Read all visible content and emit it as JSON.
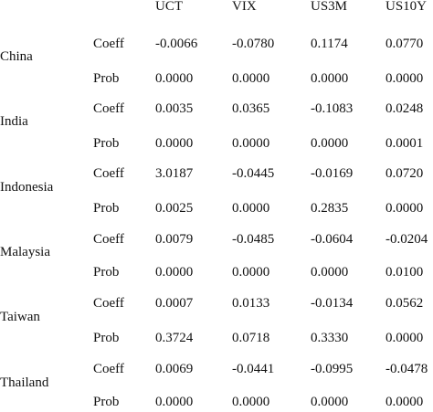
{
  "columns": [
    "UCT",
    "VIX",
    "US3M",
    "US10Y"
  ],
  "rows": [
    {
      "country": "China",
      "coeff_label": "Coeff",
      "coeff": [
        "-0.0066",
        "-0.0780",
        "0.1174",
        "0.0770"
      ],
      "prob_label": "Prob",
      "prob": [
        "0.0000",
        "0.0000",
        "0.0000",
        "0.0000"
      ]
    },
    {
      "country": "India",
      "coeff_label": "Coeff",
      "coeff": [
        "0.0035",
        "0.0365",
        "-0.1083",
        "0.0248"
      ],
      "prob_label": "Prob",
      "prob": [
        "0.0000",
        "0.0000",
        "0.0000",
        "0.0001"
      ]
    },
    {
      "country": "Indonesia",
      "coeff_label": "Coeff",
      "coeff": [
        "3.0187",
        "-0.0445",
        "-0.0169",
        "0.0720"
      ],
      "prob_label": "Prob",
      "prob": [
        "0.0025",
        "0.0000",
        "0.2835",
        "0.0000"
      ]
    },
    {
      "country": "Malaysia",
      "coeff_label": "Coeff",
      "coeff": [
        "0.0079",
        "-0.0485",
        "-0.0604",
        "-0.0204"
      ],
      "prob_label": "Prob",
      "prob": [
        "0.0000",
        "0.0000",
        "0.0000",
        "0.0100"
      ]
    },
    {
      "country": "Taiwan",
      "coeff_label": "Coeff",
      "coeff": [
        "0.0007",
        "0.0133",
        "-0.0134",
        "0.0562"
      ],
      "prob_label": "Prob",
      "prob": [
        "0.3724",
        "0.0718",
        "0.3330",
        "0.0000"
      ]
    },
    {
      "country": "Thailand",
      "coeff_label": "Coeff",
      "coeff": [
        "0.0069",
        "-0.0441",
        "-0.0995",
        "-0.0478"
      ],
      "prob_label": "Prob",
      "prob": [
        "0.0000",
        "0.0000",
        "0.0000",
        "0.0000"
      ]
    }
  ]
}
